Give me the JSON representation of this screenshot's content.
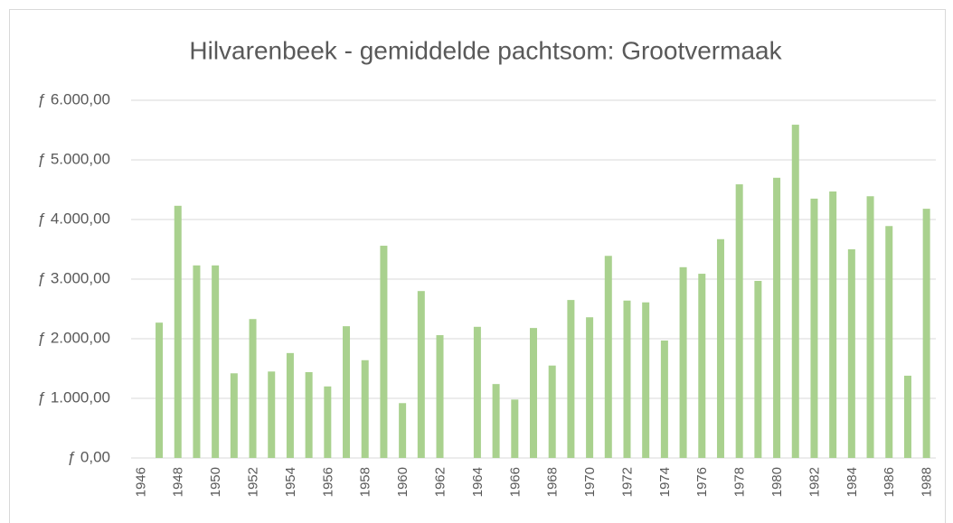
{
  "chart_data": {
    "type": "bar",
    "title": "Hilvarenbeek - gemiddelde pachtsom: Grootvermaak",
    "categories": [
      "1946",
      null,
      "1948",
      null,
      "1950",
      null,
      "1952",
      null,
      "1954",
      null,
      "1956",
      null,
      "1958",
      null,
      "1960",
      null,
      "1962",
      null,
      "1964",
      null,
      "1966",
      null,
      "1968",
      null,
      "1970",
      null,
      "1972",
      null,
      "1974",
      null,
      "1976",
      null,
      "1978",
      null,
      "1980",
      null,
      "1982",
      null,
      "1984",
      null,
      "1986",
      null,
      "1988"
    ],
    "values": [
      null,
      2270,
      4230,
      3230,
      3230,
      1420,
      2330,
      1450,
      1760,
      1440,
      1200,
      2210,
      1640,
      3560,
      920,
      2800,
      2060,
      null,
      2200,
      1240,
      980,
      2180,
      1550,
      2650,
      2360,
      3390,
      2640,
      2610,
      1970,
      3200,
      3090,
      3670,
      4590,
      2970,
      4700,
      5590,
      4350,
      4470,
      3500,
      4390,
      3890,
      1380,
      4180
    ],
    "color": "#a9d18e",
    "ylim": [
      0,
      6000
    ],
    "yticks": [
      {
        "value": 0,
        "label": "ƒ 0,00"
      },
      {
        "value": 1000,
        "label": "ƒ 1.000,00"
      },
      {
        "value": 2000,
        "label": "ƒ 2.000,00"
      },
      {
        "value": 3000,
        "label": "ƒ 3.000,00"
      },
      {
        "value": 4000,
        "label": "ƒ 4.000,00"
      },
      {
        "value": 5000,
        "label": "ƒ 5.000,00"
      },
      {
        "value": 6000,
        "label": "ƒ 6.000,00"
      }
    ],
    "grid": true
  }
}
